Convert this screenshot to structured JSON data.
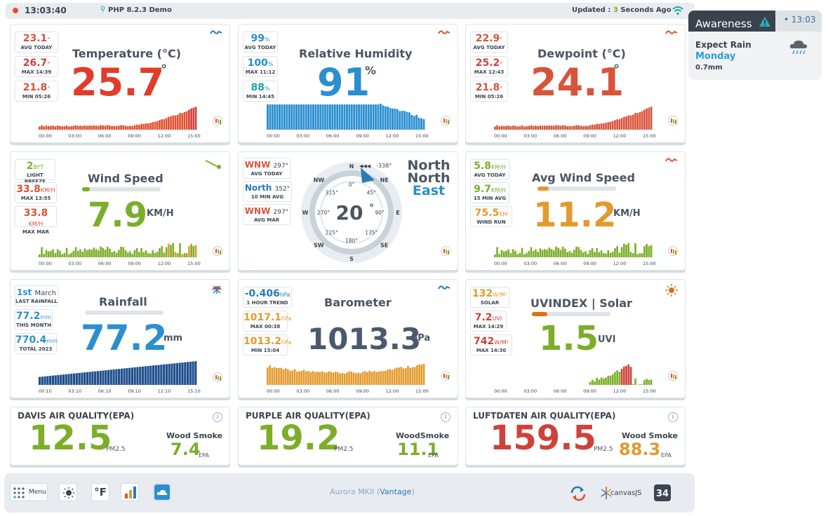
{
  "topbar": {
    "time": "13:03:40",
    "php": "PHP 8.2.3 Demo",
    "updated_prefix": "Updated :",
    "updated_num": "3",
    "updated_suffix": "Seconds Ago"
  },
  "awareness": {
    "title": "Awareness",
    "time": "13:03",
    "line1": "Expect Rain",
    "line2": "Monday",
    "line3": "0.7mm"
  },
  "temperature": {
    "title": "Temperature (°C)",
    "value": "25.7",
    "deg": "°",
    "avg": {
      "v": "23.1",
      "u": "°",
      "l": "AVG TODAY"
    },
    "max": {
      "v": "26.7",
      "u": "°",
      "l": "MAX 14:39"
    },
    "min": {
      "v": "21.8",
      "u": "°",
      "l": "MIN 05:26"
    },
    "ticks": [
      "00:00",
      "03:00",
      "06:00",
      "09:00",
      "12:00",
      "15:00"
    ]
  },
  "humidity": {
    "title": "Relative Humidity",
    "value": "91",
    "unit": "%",
    "avg": {
      "v": "99",
      "u": "%",
      "l": "AVG TODAY"
    },
    "max": {
      "v": "100",
      "u": "%",
      "l": "MAX 11:12"
    },
    "min": {
      "v": "88",
      "u": "%",
      "l": "MIN 14:45"
    },
    "ticks": [
      "00:00",
      "03:00",
      "06:00",
      "09:00",
      "12:00",
      "15:00"
    ]
  },
  "dewpoint": {
    "title": "Dewpoint (°C)",
    "value": "24.1",
    "deg": "°",
    "avg": {
      "v": "22.9",
      "u": "°",
      "l": "AVG TODAY"
    },
    "max": {
      "v": "25.2",
      "u": "°",
      "l": "MAX 12:43"
    },
    "min": {
      "v": "21.8",
      "u": "°",
      "l": "MIN 05:26"
    },
    "ticks": [
      "00:00",
      "03:00",
      "06:00",
      "09:00",
      "12:00",
      "15:00"
    ]
  },
  "wind": {
    "title": "Wind Speed",
    "value": "7.9",
    "unit": "KM/H",
    "fill": 0.1,
    "bft": {
      "v": "2",
      "u": "BFT",
      "l": "LIGHT BREEZE"
    },
    "max": {
      "v": "33.8",
      "u": "KM/H",
      "l": "MAX 13:55"
    },
    "maxm": {
      "v": "33.8",
      "u": "KM/H",
      "l": "MAX MAR"
    },
    "ticks": [
      "00:00",
      "03:00",
      "06:00",
      "09:00",
      "12:00",
      "15:00"
    ]
  },
  "compass": {
    "heading": "20",
    "deg": "°",
    "dir1": "North",
    "dir2": "North",
    "dir3": "East",
    "range": "-338°",
    "avg": {
      "v": "WNW",
      "d": "297°",
      "l": "AVG TODAY"
    },
    "ten": {
      "v": "North",
      "d": "352°",
      "l": "10 MIN AVG"
    },
    "mar": {
      "v": "WNW",
      "d": "297°",
      "l": "AVG MAR"
    },
    "points": [
      "N",
      "NE",
      "E",
      "SE",
      "S",
      "SW",
      "W",
      "NW"
    ],
    "degs": [
      "0°",
      "45°",
      "90°",
      "135°",
      "180°",
      "225°",
      "270°",
      "315°"
    ]
  },
  "avgwind": {
    "title": "Avg Wind Speed",
    "value": "11.2",
    "unit": "KM/H",
    "fill": 0.14,
    "avg": {
      "v": "5.8",
      "u": "KM/H",
      "l": "AVG TODAY"
    },
    "ten": {
      "v": "9.7",
      "u": "KM/H",
      "l": "15 MIN AVG"
    },
    "run": {
      "v": "75.5",
      "u": "KM",
      "l": "WIND RUN"
    },
    "ticks": [
      "00:00",
      "03:00",
      "06:00",
      "09:00",
      "12:00",
      "15:00"
    ]
  },
  "rainfall": {
    "title": "Rainfall",
    "value": "77.2",
    "unit": "mm",
    "last": {
      "v": "1st",
      "u": "March",
      "l": "LAST RAINFALL"
    },
    "month": {
      "v": "77.2",
      "u": "mm",
      "l": "THIS MONTH"
    },
    "year": {
      "v": "770.4",
      "u": "mm",
      "l": "TOTAL 2023"
    },
    "ticks": [
      "00:10",
      "03:10",
      "06:10",
      "09:10",
      "12:10",
      "15:10"
    ]
  },
  "barometer": {
    "title": "Barometer",
    "value": "1013.3",
    "unit": "hPa",
    "trend": {
      "v": "-0.406",
      "u": "hPa",
      "l": "1 HOUR TREND"
    },
    "max": {
      "v": "1017.1",
      "u": "hPa",
      "l": "MAX 00:38"
    },
    "min": {
      "v": "1013.2",
      "u": "hPa",
      "l": "MIN 15:04"
    },
    "ticks": [
      "00:00",
      "03:00",
      "06:00",
      "09:00",
      "12:00",
      "15:00"
    ]
  },
  "uv": {
    "title": "UVINDEX | Solar",
    "value": "1.5",
    "unit": "UVI",
    "fill": 0.2,
    "solar": {
      "v": "132",
      "u": "W/M²",
      "l": "SOLAR"
    },
    "max": {
      "v": "7.2",
      "u": "UVI",
      "l": "MAX 14:29"
    },
    "smax": {
      "v": "742",
      "u": "W/M²",
      "l": "MAX 14:30"
    },
    "ticks": [
      "00:00",
      "03:00",
      "06:00",
      "09:00",
      "12:00",
      "15:00"
    ]
  },
  "aq": [
    {
      "title": "DAVIS AIR QUALITY(EPA)",
      "value": "12.5",
      "pm": "PM2.5",
      "ws": "Wood Smoke",
      "wv": "7.4",
      "epa": "EPA",
      "color": "#7cae2a",
      "wcolor": "#7cae2a"
    },
    {
      "title": "PURPLE AIR QUALITY(EPA)",
      "value": "19.2",
      "pm": "PM2.5",
      "ws": "WoodSmoke",
      "wv": "11.1",
      "epa": "EPA",
      "color": "#7cae2a",
      "wcolor": "#7cae2a"
    },
    {
      "title": "LUFTDATEN AIR QUALITY(EPA)",
      "value": "159.5",
      "pm": "PM2.5",
      "ws": "Wood Smoke",
      "wv": "88.3",
      "epa": "EPA",
      "color": "#d0413a",
      "wcolor": "#e39a2d"
    }
  ],
  "bottom": {
    "menu": "Menu",
    "unit": "°F",
    "station": "Aurora MKII",
    "station_brand": "Vantage",
    "canvas": "canvasJS",
    "w34": "34"
  }
}
